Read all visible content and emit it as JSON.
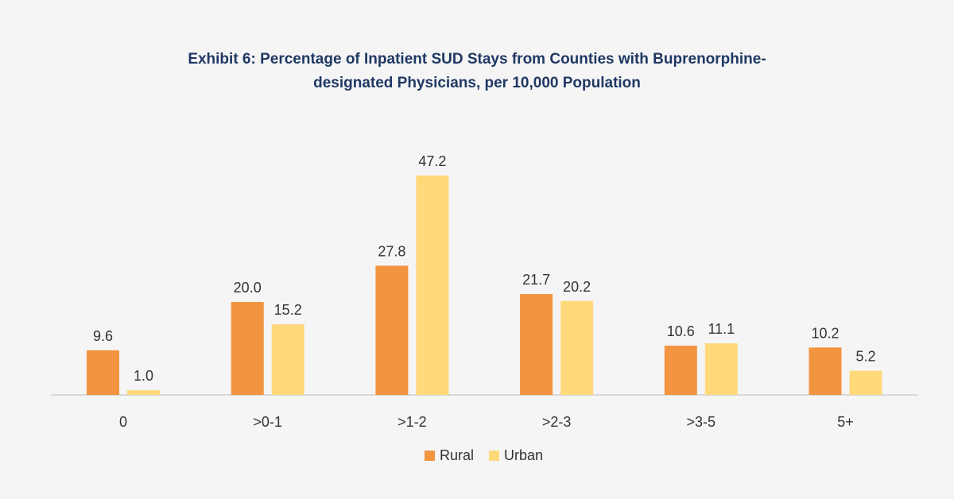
{
  "chart_data": {
    "type": "bar",
    "title_line1": "Exhibit 6: Percentage of Inpatient SUD Stays from Counties with Buprenorphine-",
    "title_line2": "designated Physicians, per 10,000 Population",
    "categories": [
      "0",
      ">0-1",
      ">1-2",
      ">2-3",
      ">3-5",
      "5+"
    ],
    "series": [
      {
        "name": "Rural",
        "color": "#f29440",
        "values": [
          9.6,
          20.0,
          27.8,
          21.7,
          10.6,
          10.2
        ],
        "labels": [
          "9.6",
          "20.0",
          "27.8",
          "21.7",
          "10.6",
          "10.2"
        ]
      },
      {
        "name": "Urban",
        "color": "#ffd97a",
        "values": [
          1.0,
          15.2,
          47.2,
          20.2,
          11.1,
          5.2
        ],
        "labels": [
          "1.0",
          "15.2",
          "47.2",
          "20.2",
          "11.1",
          "5.2"
        ]
      }
    ],
    "ylim": [
      0,
      50
    ],
    "grid": false,
    "legend_position": "bottom-center"
  }
}
